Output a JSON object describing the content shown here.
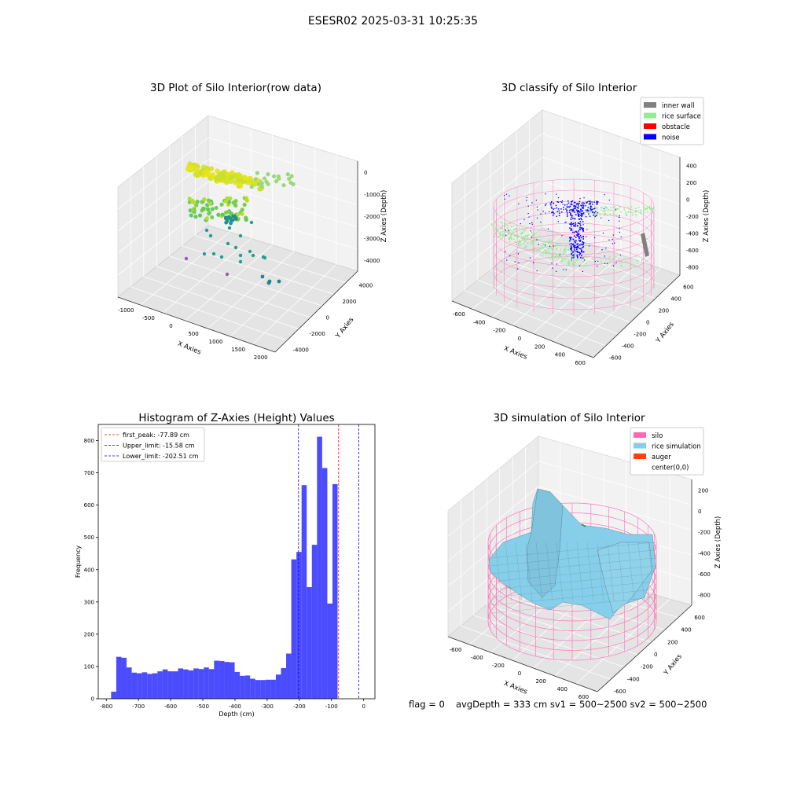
{
  "figure": {
    "suptitle": "ESESR02 2025-03-31 10:25:35",
    "footer": {
      "flag": "flag = 0",
      "stats": "avgDepth = 333 cm  sv1 = 500~2500  sv2 = 500~2500"
    }
  },
  "colors": {
    "hist": "#0000ff",
    "first_peak": "#ff0000",
    "limits": "#0000cc",
    "silo": "#ff69b4",
    "rice_sim": "#87ceeb",
    "inner_wall": "#808080",
    "rice_surface": "#90ee90",
    "obstacle": "#ff0000",
    "noise": "#0000ff",
    "auger": "#ff4500"
  },
  "chart_data": [
    {
      "type": "scatter",
      "projection": "3d",
      "title": "3D Plot of Silo Interior(row data)",
      "xlabel": "X Axies",
      "ylabel": "Y Axies",
      "zlabel": "Z Axies (Depth)",
      "xticks": [
        "-1000",
        "-500",
        "0",
        "500",
        "1000",
        "1500",
        "2000"
      ],
      "yticks": [
        "-4000",
        "-2000",
        "0",
        "2000",
        "4000"
      ],
      "zticks": [
        "0",
        "-1000",
        "-2000",
        "-3000",
        "-4000"
      ],
      "colormap": "viridis",
      "point_groups": [
        {
          "name": "top yellow band",
          "approx_z": -700
        },
        {
          "name": "mid green band",
          "approx_z": -1800
        },
        {
          "name": "lower teal scatter",
          "approx_z": -3600
        },
        {
          "name": "bottom purple points",
          "approx_z": -4200
        }
      ]
    },
    {
      "type": "scatter",
      "projection": "3d",
      "title": "3D classify of Silo Interior",
      "xlabel": "X Axies",
      "ylabel": "Y Axies",
      "zlabel": "Z Axies (Depth)",
      "xticks": [
        "-600",
        "-400",
        "-200",
        "0",
        "200",
        "400",
        "600"
      ],
      "yticks": [
        "-600",
        "-400",
        "-200",
        "0",
        "200",
        "400",
        "600"
      ],
      "zticks": [
        "400",
        "200",
        "0",
        "-200",
        "-400",
        "-600",
        "-800"
      ],
      "legend": {
        "placement": "upper-right",
        "entries": [
          {
            "label": "inner wall",
            "color": "#808080"
          },
          {
            "label": "rice surface",
            "color": "#90ee90"
          },
          {
            "label": "obstacle",
            "color": "#ff0000"
          },
          {
            "label": "noise",
            "color": "#0000ff"
          }
        ]
      }
    },
    {
      "type": "bar",
      "title": "Histogram of Z-Axies (Height) Values",
      "xlabel": "Depth (cm)",
      "ylabel": "Frequency",
      "xlim": [
        -825,
        35
      ],
      "ylim": [
        0,
        850
      ],
      "xticks": [
        -800,
        -700,
        -600,
        -500,
        -400,
        -300,
        -200,
        -100,
        0
      ],
      "yticks": [
        0,
        100,
        200,
        300,
        400,
        500,
        600,
        700,
        800
      ],
      "bin_width": 16,
      "bin_edges_start": -785,
      "values": [
        22,
        130,
        127,
        97,
        81,
        79,
        82,
        77,
        79,
        85,
        91,
        85,
        85,
        94,
        91,
        88,
        94,
        92,
        97,
        92,
        118,
        117,
        114,
        113,
        83,
        71,
        72,
        62,
        58,
        58,
        59,
        59,
        75,
        95,
        140,
        432,
        455,
        662,
        346,
        477,
        812,
        715,
        295,
        665
      ],
      "vlines": [
        {
          "label": "first_peak: -77.89 cm",
          "x": -77.89,
          "style": "dashed",
          "color": "#ff0000"
        },
        {
          "label": "Upper_limit: -15.58 cm",
          "x": -15.58,
          "style": "dashed",
          "color": "#0000cc"
        },
        {
          "label": "Lower_limit: -202.51 cm",
          "x": -202.51,
          "style": "dashed",
          "color": "#0000cc"
        }
      ],
      "legend": {
        "placement": "upper-left"
      }
    },
    {
      "type": "area",
      "projection": "3d",
      "title": "3D simulation of Silo Interior",
      "xlabel": "X Axies",
      "ylabel": "Y Axies",
      "zlabel": "Z Axies (Depth)",
      "xticks": [
        "-600",
        "-400",
        "-200",
        "0",
        "200",
        "400",
        "600"
      ],
      "yticks": [
        "-600",
        "-400",
        "-200",
        "0",
        "200",
        "400",
        "600"
      ],
      "zticks": [
        "200",
        "0",
        "-200",
        "-400",
        "-600",
        "-800"
      ],
      "legend": {
        "placement": "upper-right",
        "entries": [
          {
            "label": "silo",
            "color": "#ff69b4"
          },
          {
            "label": "rice simulation",
            "color": "#87ceeb"
          },
          {
            "label": "auger",
            "color": "#ff4500"
          },
          {
            "label": "center(0,0)",
            "color": ""
          }
        ]
      }
    }
  ]
}
